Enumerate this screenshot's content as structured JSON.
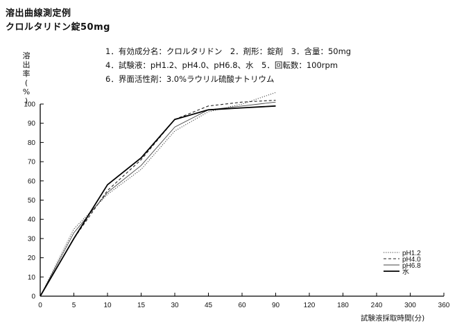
{
  "header": {
    "title1": "溶出曲線測定例",
    "title2": "クロルタリドン錠50mg"
  },
  "conditions": [
    "1．有効成分名：クロルタリドン　2．剤形：錠剤　3．含量：50mg",
    "4．試験液：pH1.2、pH4.0、pH6.8、水　5．回転数：100rpm",
    "6．界面活性剤：3.0%ラウリル硫酸ナトリウム"
  ],
  "chart_data": {
    "type": "line",
    "title": "",
    "xlabel": "試験液採取時間(分)",
    "ylabel": "溶出率(%)",
    "x_ticks": [
      "0",
      "5",
      "10",
      "15",
      "30",
      "45",
      "60",
      "90",
      "120",
      "180",
      "240",
      "300",
      "360"
    ],
    "y_ticks": [
      "0",
      "10",
      "20",
      "30",
      "40",
      "50",
      "60",
      "70",
      "80",
      "90",
      "100"
    ],
    "ylim": [
      0,
      100
    ],
    "x": [
      0,
      5,
      10,
      15,
      30,
      45,
      60,
      90
    ],
    "series": [
      {
        "name": "pH1.2",
        "style": "dotted",
        "color": "#333333",
        "values": [
          0,
          35,
          53,
          66,
          86,
          96,
          100,
          106
        ]
      },
      {
        "name": "pH4.0",
        "style": "dashed",
        "color": "#222222",
        "values": [
          0,
          30,
          55,
          71,
          92,
          99,
          101,
          102
        ]
      },
      {
        "name": "pH6.8",
        "style": "thin",
        "color": "#444444",
        "values": [
          0,
          33,
          54,
          68,
          88,
          97,
          99,
          101
        ]
      },
      {
        "name": "水",
        "style": "solid",
        "color": "#000000",
        "values": [
          0,
          30,
          58,
          72,
          92,
          97,
          98,
          99
        ]
      }
    ],
    "grid": false,
    "legend": "bottom-right"
  }
}
